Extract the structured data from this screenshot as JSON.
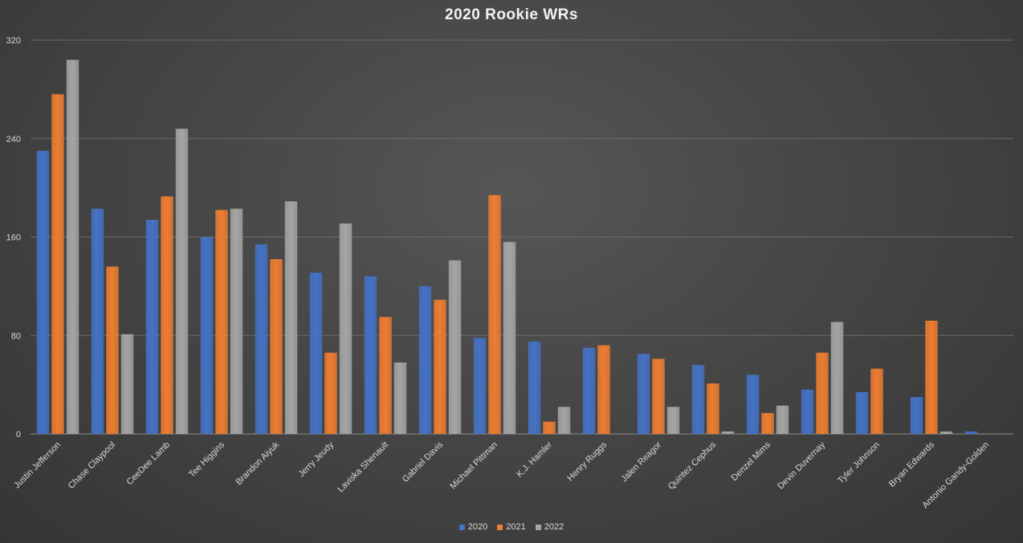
{
  "chart_data": {
    "type": "bar",
    "title": "2020 Rookie WRs",
    "xlabel": "",
    "ylabel": "",
    "ylim": [
      0,
      320
    ],
    "yticks": [
      0,
      80,
      160,
      240,
      320
    ],
    "grid": true,
    "legend_position": "bottom",
    "categories": [
      "Justin Jefferson",
      "Chase Claypool",
      "CeeDee Lamb",
      "Tee Higgins",
      "Brandon Aiyuk",
      "Jerry Jeudy",
      "Laviska Shenault",
      "Gabriel Davis",
      "Michael Pittman",
      "K.J. Hamler",
      "Henry Ruggs",
      "Jalen Reagor",
      "Quintez Cephus",
      "Denzel Mims",
      "Devin Duvernay",
      "Tyler Johnson",
      "Bryan Edwards",
      "Antonio Gandy-Golden"
    ],
    "series": [
      {
        "name": "2020",
        "color": "#4472C4",
        "values": [
          230,
          183,
          174,
          160,
          154,
          131,
          128,
          120,
          78,
          75,
          70,
          65,
          56,
          48,
          36,
          34,
          30,
          2
        ]
      },
      {
        "name": "2021",
        "color": "#ED7D31",
        "values": [
          276,
          136,
          193,
          182,
          142,
          66,
          95,
          109,
          194,
          10,
          72,
          61,
          41,
          17,
          66,
          53,
          92,
          0
        ]
      },
      {
        "name": "2022",
        "color": "#A5A5A5",
        "values": [
          304,
          81,
          248,
          183,
          189,
          171,
          58,
          141,
          156,
          22,
          0,
          22,
          2,
          23,
          91,
          0,
          2,
          0
        ]
      }
    ]
  }
}
